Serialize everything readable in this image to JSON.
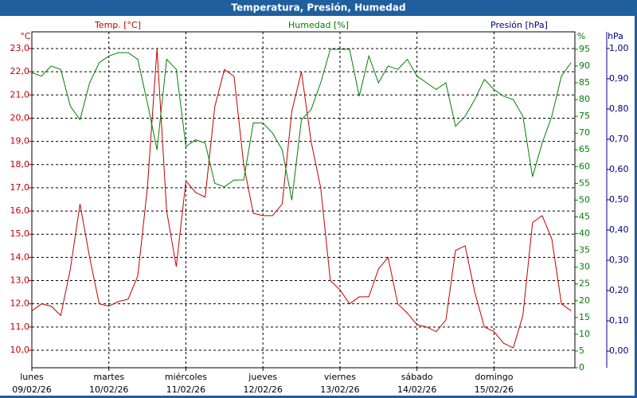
{
  "chart_data": {
    "type": "line",
    "title": "Temperatura, Presión, Humedad",
    "ylabel": "Temp. [°C]",
    "y2label": "Humedad [%]",
    "y3label": "Presión [hPa]",
    "y_unit": "°C",
    "y2_unit": "%",
    "y3_unit": "hPa",
    "x": [
      0,
      0.125,
      0.25,
      0.375,
      0.5,
      0.625,
      0.75,
      0.875,
      1,
      1.125,
      1.25,
      1.375,
      1.5,
      1.625,
      1.75,
      1.875,
      2,
      2.125,
      2.25,
      2.375,
      2.5,
      2.625,
      2.75,
      2.875,
      3,
      3.125,
      3.25,
      3.375,
      3.5,
      3.625,
      3.75,
      3.875,
      4,
      4.125,
      4.25,
      4.375,
      4.5,
      4.625,
      4.75,
      4.875,
      5,
      5.125,
      5.25,
      5.375,
      5.5,
      5.625,
      5.75,
      5.875,
      6,
      6.125,
      6.25,
      6.375,
      6.5,
      6.625,
      6.75,
      6.875,
      7
    ],
    "series": [
      {
        "name": "Temp. [°C]",
        "color": "#c00000",
        "axis": "y",
        "values": [
          11.7,
          12.0,
          11.9,
          11.5,
          13.5,
          16.3,
          14.0,
          12.0,
          11.9,
          12.1,
          12.2,
          13.2,
          17.0,
          23.0,
          16.0,
          13.6,
          17.3,
          16.8,
          16.6,
          20.5,
          22.1,
          21.8,
          18.0,
          15.9,
          15.8,
          15.8,
          16.3,
          20.3,
          22.0,
          19.0,
          17.0,
          13.0,
          12.6,
          12.0,
          12.3,
          12.3,
          13.5,
          14.0,
          12.0,
          11.6,
          11.1,
          11.0,
          10.8,
          11.3,
          14.3,
          14.5,
          12.5,
          11.0,
          10.8,
          10.3,
          10.1,
          11.5,
          15.5,
          15.8,
          14.8,
          12.0,
          11.7
        ]
      },
      {
        "name": "Humedad [%]",
        "color": "#008000",
        "axis": "y2",
        "values": [
          88,
          87,
          90,
          89,
          78,
          74,
          85,
          91,
          93,
          94,
          94,
          92,
          79,
          65,
          92,
          89,
          66,
          68,
          67,
          55,
          54,
          56,
          56,
          73,
          73,
          70,
          65,
          50,
          74,
          77,
          85,
          95,
          95,
          95,
          81,
          93,
          85,
          90,
          89,
          92,
          87,
          85,
          83,
          85,
          72,
          75,
          80,
          86,
          83,
          81,
          80,
          75,
          57,
          67,
          75,
          87,
          91
        ]
      }
    ],
    "xlim": [
      0,
      7.05
    ],
    "xticks": [
      {
        "value": 0,
        "label": "lunes"
      },
      {
        "value": 1,
        "label": "martes"
      },
      {
        "value": 2,
        "label": "miércoles"
      },
      {
        "value": 3,
        "label": "jueves"
      },
      {
        "value": 4,
        "label": "viernes"
      },
      {
        "value": 5,
        "label": "sábado"
      },
      {
        "value": 6,
        "label": "domingo"
      }
    ],
    "xtick_dates": [
      "09/02/26",
      "10/02/26",
      "11/02/26",
      "12/02/26",
      "13/02/26",
      "14/02/26",
      "15/02/26"
    ],
    "ylim": [
      9.245,
      23.72
    ],
    "yticks": [
      {
        "value": 10,
        "label": "10,0"
      },
      {
        "value": 11,
        "label": "11,0"
      },
      {
        "value": 12,
        "label": "12,0"
      },
      {
        "value": 13,
        "label": "13,0"
      },
      {
        "value": 14,
        "label": "14,0"
      },
      {
        "value": 15,
        "label": "15,0"
      },
      {
        "value": 16,
        "label": "16,0"
      },
      {
        "value": 17,
        "label": "17,0"
      },
      {
        "value": 18,
        "label": "18,0"
      },
      {
        "value": 19,
        "label": "19,0"
      },
      {
        "value": 20,
        "label": "20,0"
      },
      {
        "value": 21,
        "label": "21,0"
      },
      {
        "value": 22,
        "label": "22,0"
      },
      {
        "value": 23,
        "label": "23,0"
      }
    ],
    "y2lim": [
      0,
      100.2
    ],
    "y2ticks": [
      0,
      5,
      10,
      15,
      20,
      25,
      30,
      35,
      40,
      45,
      50,
      55,
      60,
      65,
      70,
      75,
      80,
      85,
      90,
      95
    ],
    "y3lim": [
      -0.055,
      1.055
    ],
    "y3ticks": [
      {
        "value": 0,
        "label": "0,00"
      },
      {
        "value": 0.1,
        "label": "0,10"
      },
      {
        "value": 0.2,
        "label": "0,20"
      },
      {
        "value": 0.3,
        "label": "0,30"
      },
      {
        "value": 0.4,
        "label": "0,40"
      },
      {
        "value": 0.5,
        "label": "0,50"
      },
      {
        "value": 0.6,
        "label": "0,60"
      },
      {
        "value": 0.7,
        "label": "0,70"
      },
      {
        "value": 0.8,
        "label": "0,80"
      },
      {
        "value": 0.9,
        "label": "0,90"
      },
      {
        "value": 1,
        "label": "1,00"
      }
    ],
    "grid": true,
    "y_color": "#c00000",
    "y2_color": "#008000",
    "y3_color": "#000080"
  }
}
